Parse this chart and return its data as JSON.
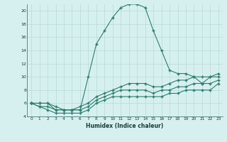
{
  "xlabel": "Humidex (Indice chaleur)",
  "x": [
    0,
    1,
    2,
    3,
    4,
    5,
    6,
    7,
    8,
    9,
    10,
    11,
    12,
    13,
    14,
    15,
    16,
    17,
    18,
    19,
    20,
    21,
    22,
    23
  ],
  "line1": [
    6.0,
    6.0,
    6.0,
    5.0,
    5.0,
    5.0,
    5.0,
    10.0,
    15.0,
    17.0,
    19.0,
    20.5,
    21.0,
    21.0,
    20.5,
    17.0,
    14.0,
    11.0,
    10.5,
    10.5,
    10.0,
    9.0,
    10.0,
    10.0
  ],
  "line2": [
    6.0,
    6.0,
    6.0,
    5.5,
    5.0,
    5.0,
    5.5,
    6.0,
    7.0,
    7.5,
    8.0,
    8.5,
    9.0,
    9.0,
    9.0,
    8.5,
    8.5,
    9.0,
    9.5,
    9.5,
    10.0,
    10.0,
    10.0,
    10.5
  ],
  "line3": [
    6.0,
    5.5,
    5.5,
    5.0,
    5.0,
    5.0,
    5.0,
    5.5,
    6.5,
    7.0,
    7.5,
    8.0,
    8.0,
    8.0,
    8.0,
    7.5,
    8.0,
    8.0,
    8.5,
    8.5,
    9.0,
    9.0,
    9.0,
    9.5
  ],
  "line4": [
    6.0,
    5.5,
    5.0,
    4.5,
    4.5,
    4.5,
    4.5,
    5.0,
    6.0,
    6.5,
    7.0,
    7.0,
    7.0,
    7.0,
    7.0,
    7.0,
    7.0,
    7.5,
    7.5,
    8.0,
    8.0,
    8.0,
    8.0,
    9.0
  ],
  "line_color": "#2e7d6e",
  "bg_color": "#d6f0f0",
  "grid_color": "#b8d8d8",
  "ylim": [
    4,
    21
  ],
  "xlim": [
    -0.5,
    23.5
  ],
  "yticks": [
    4,
    6,
    8,
    10,
    12,
    14,
    16,
    18,
    20
  ],
  "xticks": [
    0,
    1,
    2,
    3,
    4,
    5,
    6,
    7,
    8,
    9,
    10,
    11,
    12,
    13,
    14,
    15,
    16,
    17,
    18,
    19,
    20,
    21,
    22,
    23
  ]
}
